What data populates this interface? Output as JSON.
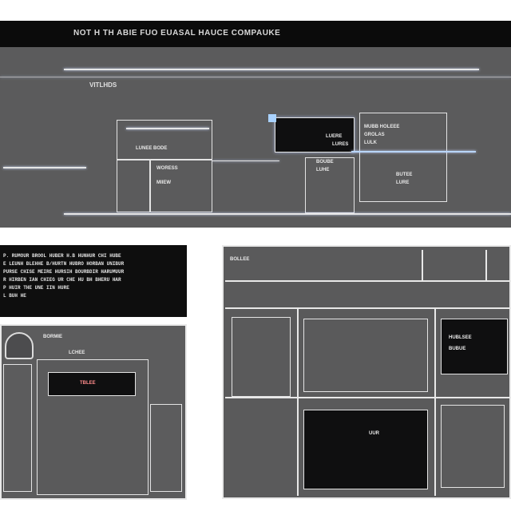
{
  "header": {
    "title": "NOT H TH ABIE FUO EUASAL HAUCE COMPAUKE"
  },
  "main_panel": {
    "subtitle": "VITLHDS",
    "center_box_label": "LUNEE BODE",
    "box2_label_1": "WORESS",
    "box2_label_2": "MIIEW",
    "mid_label_1": "LUERE",
    "mid_label_2": "LURES",
    "right_box_line_1": "MUBB HOLEEE",
    "right_box_line_2": "GROLAS",
    "right_box_line_3": "LULK",
    "lower_mid_1": "BOUBE",
    "lower_mid_2": "LUHE",
    "right_lower_1": "BUTEE",
    "right_lower_2": "LURE"
  },
  "text_block": {
    "lines": [
      "P. RUMOUR BROOL HUBER H.B HUNHUR CHI HUBE",
      "E LEUNH BLEHHE B/HURTN HUBRO HORBAN UNIBUR",
      "PURSE CHISE MEIRE HURSIH BOURBDIR HARUMUUR",
      "R HIRBEN IAN CHIEG UR CHE HU BH BHERU HAR",
      "P HUIR THE UNE IIN HURE",
      "L BUH HE"
    ]
  },
  "left_scene": {
    "label_1": "BORMIE",
    "label_2": "LCHEE",
    "label_3": "TBLEE"
  },
  "right_scene": {
    "top_label": "BOLLEE",
    "card_line_1": "HUBLSEE",
    "card_line_2": "BUBUE",
    "center_label": "UUR"
  }
}
